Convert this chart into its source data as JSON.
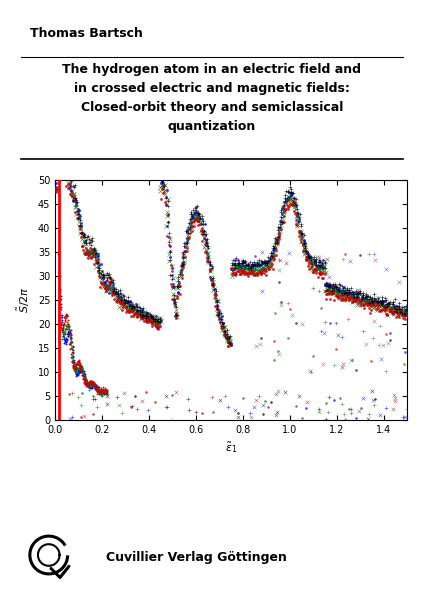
{
  "title_author": "Thomas Bartsch",
  "title_line1": "The hydrogen atom in an electric field and",
  "title_line2": "in crossed electric and magnetic fields:",
  "title_line3": "Closed-orbit theory and semiclassical",
  "title_line4": "quantization",
  "xlim": [
    0,
    1.5
  ],
  "ylim": [
    0,
    50
  ],
  "xticks": [
    0,
    0.2,
    0.4,
    0.6,
    0.8,
    1.0,
    1.2,
    1.4
  ],
  "yticks": [
    0,
    5,
    10,
    15,
    20,
    25,
    30,
    35,
    40,
    45,
    50
  ],
  "publisher_text": "Cuvillier Verlag Göttingen",
  "bg_color": "#ffffff",
  "seed": 42
}
